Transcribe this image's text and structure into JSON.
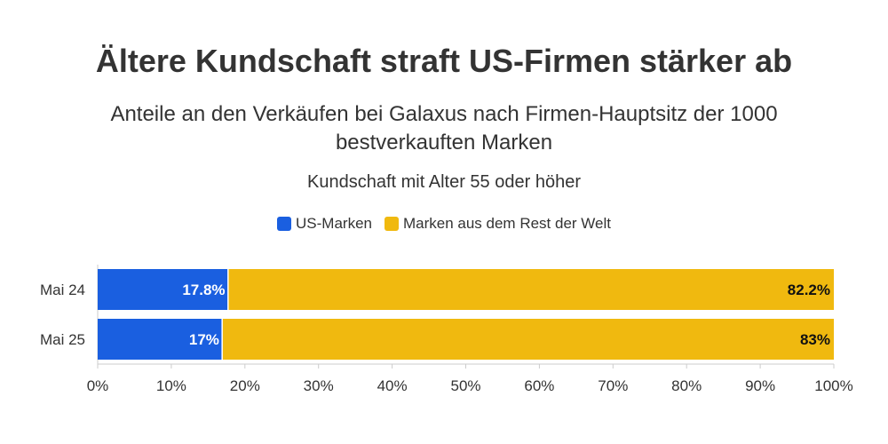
{
  "header": {
    "title": "Ältere Kundschaft straft US-Firmen stärker ab",
    "subtitle_line1": "Anteile an den Verkäufen bei Galaxus nach Firmen-Hauptsitz der 1000",
    "subtitle_line2": "bestverkauften Marken",
    "subtitle2": "Kundschaft mit Alter 55 oder höher"
  },
  "colors": {
    "us": "#1a5fe0",
    "rest": "#f0b90f",
    "axis": "#cccccc",
    "text": "#333333"
  },
  "chart_data": {
    "type": "bar",
    "orientation": "horizontal",
    "stacked": true,
    "categories": [
      "Mai 24",
      "Mai 25"
    ],
    "series": [
      {
        "name": "US-Marken",
        "values": [
          17.8,
          17
        ],
        "labels": [
          "17.8%",
          "17%"
        ]
      },
      {
        "name": "Marken aus dem Rest der Welt",
        "values": [
          82.2,
          83
        ],
        "labels": [
          "82.2%",
          "83%"
        ]
      }
    ],
    "xlim": [
      0,
      100
    ],
    "xticks": [
      "0%",
      "10%",
      "20%",
      "30%",
      "40%",
      "50%",
      "60%",
      "70%",
      "80%",
      "90%",
      "100%"
    ],
    "legend_position": "top-center",
    "grid": false
  }
}
